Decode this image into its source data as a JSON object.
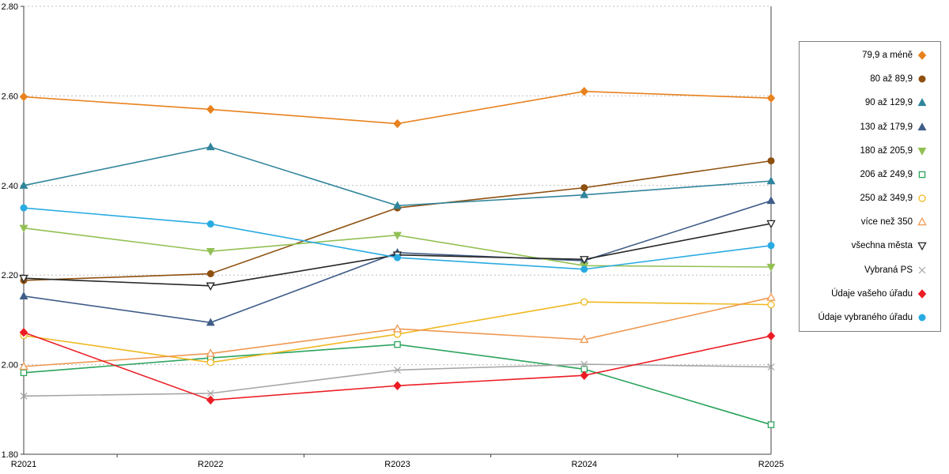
{
  "chart_data": {
    "type": "line",
    "x_categories": [
      "R2021",
      "R2022",
      "R2023",
      "R2024",
      "R2025"
    ],
    "ylim": [
      1.8,
      2.8
    ],
    "yticks": [
      1.8,
      2.0,
      2.2,
      2.4,
      2.6,
      2.8
    ],
    "ytick_labels": [
      "1.80",
      "2.00",
      "2.20",
      "2.40",
      "2.60",
      "2.80"
    ],
    "grid": "horizontal dotted gridlines",
    "legend_position": "right",
    "series": [
      {
        "name": "79,9 a méně",
        "marker": "diamond",
        "open": false,
        "color": "#E8821E",
        "values": [
          2.598,
          2.57,
          2.538,
          2.61,
          2.595
        ]
      },
      {
        "name": "80 až 89,9",
        "marker": "circle",
        "open": false,
        "color": "#8E500E",
        "values": [
          2.188,
          2.203,
          2.35,
          2.395,
          2.455
        ]
      },
      {
        "name": "90 až 129,9",
        "marker": "triangle-up",
        "open": false,
        "color": "#31859C",
        "values": [
          2.4,
          2.486,
          2.355,
          2.379,
          2.41
        ]
      },
      {
        "name": "130 až 179,9",
        "marker": "triangle-up",
        "open": false,
        "color": "#3F5D88",
        "values": [
          2.153,
          2.094,
          2.25,
          2.232,
          2.366
        ]
      },
      {
        "name": "180 až 205,9",
        "marker": "triangle-down",
        "open": false,
        "color": "#93C054",
        "values": [
          2.305,
          2.253,
          2.289,
          2.221,
          2.218
        ]
      },
      {
        "name": "206 až 249,9",
        "marker": "square",
        "open": true,
        "color": "#2BA45D",
        "values": [
          1.982,
          2.015,
          2.045,
          1.99,
          1.866
        ]
      },
      {
        "name": "250 až 349,9",
        "marker": "circle",
        "open": true,
        "color": "#EFB820",
        "values": [
          2.065,
          2.005,
          2.068,
          2.14,
          2.134
        ]
      },
      {
        "name": "více než 350",
        "marker": "triangle-up",
        "open": true,
        "color": "#EF9850",
        "values": [
          1.996,
          2.025,
          2.08,
          2.056,
          2.15
        ]
      },
      {
        "name": "všechna města",
        "marker": "triangle-down",
        "open": true,
        "color": "#262626",
        "values": [
          2.193,
          2.176,
          2.245,
          2.235,
          2.315
        ]
      },
      {
        "name": "Vybraná PS",
        "marker": "x",
        "open": true,
        "color": "#A6A6A6",
        "values": [
          1.93,
          1.936,
          1.988,
          2.001,
          1.995
        ]
      },
      {
        "name": "Údaje vašeho úřadu",
        "marker": "diamond",
        "open": false,
        "color": "#EC1C24",
        "values": [
          2.072,
          1.921,
          1.953,
          1.976,
          2.064
        ]
      },
      {
        "name": "Údaje vybraného úřadu",
        "marker": "circle",
        "open": false,
        "color": "#29ABE2",
        "values": [
          2.35,
          2.314,
          2.239,
          2.213,
          2.266
        ]
      }
    ]
  }
}
